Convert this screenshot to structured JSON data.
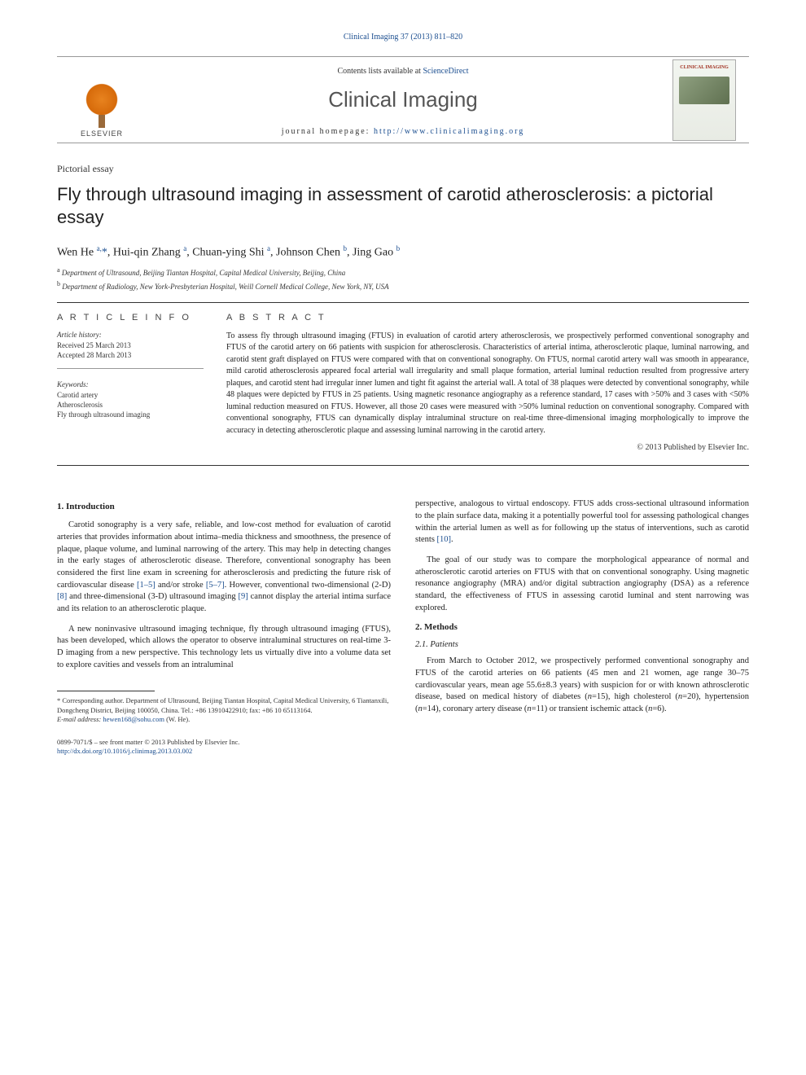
{
  "header": {
    "citation_link": "Clinical Imaging 37 (2013) 811–820",
    "contents_prefix": "Contents lists available at ",
    "contents_link": "ScienceDirect",
    "journal_title": "Clinical Imaging",
    "homepage_prefix": "journal homepage: ",
    "homepage_link": "http://www.clinicalimaging.org",
    "elsevier_label": "ELSEVIER",
    "cover_title": "CLINICAL IMAGING"
  },
  "article": {
    "type": "Pictorial essay",
    "title": "Fly through ultrasound imaging in assessment of carotid atherosclerosis: a pictorial essay",
    "authors_html": "Wen He <sup>a,</sup><span class='star'>*</span>, Hui-qin Zhang <sup>a</sup>, Chuan-ying Shi <sup>a</sup>, Johnson Chen <sup>b</sup>, Jing Gao <sup>b</sup>",
    "affiliations": [
      {
        "sup": "a",
        "text": "Department of Ultrasound, Beijing Tiantan Hospital, Capital Medical University, Beijing, China"
      },
      {
        "sup": "b",
        "text": "Department of Radiology, New York-Presbyterian Hospital, Weill Cornell Medical College, New York, NY, USA"
      }
    ]
  },
  "info": {
    "heading": "A R T I C L E   I N F O",
    "history_head": "Article history:",
    "received": "Received 25 March 2013",
    "accepted": "Accepted 28 March 2013",
    "keywords_head": "Keywords:",
    "keywords": [
      "Carotid artery",
      "Atherosclerosis",
      "Fly through ultrasound imaging"
    ]
  },
  "abstract": {
    "heading": "A B S T R A C T",
    "text": "To assess fly through ultrasound imaging (FTUS) in evaluation of carotid artery atherosclerosis, we prospectively performed conventional sonography and FTUS of the carotid artery on 66 patients with suspicion for atherosclerosis. Characteristics of arterial intima, atherosclerotic plaque, luminal narrowing, and carotid stent graft displayed on FTUS were compared with that on conventional sonography. On FTUS, normal carotid artery wall was smooth in appearance, mild carotid atherosclerosis appeared focal arterial wall irregularity and small plaque formation, arterial luminal reduction resulted from progressive artery plaques, and carotid stent had irregular inner lumen and tight fit against the arterial wall. A total of 38 plaques were detected by conventional sonography, while 48 plaques were depicted by FTUS in 25 patients. Using magnetic resonance angiography as a reference standard, 17 cases with >50% and 3 cases with <50% luminal reduction measured on FTUS. However, all those 20 cases were measured with >50% luminal reduction on conventional sonography. Compared with conventional sonography, FTUS can dynamically display intraluminal structure on real-time three-dimensional imaging morphologically to improve the accuracy in detecting atherosclerotic plaque and assessing luminal narrowing in the carotid artery.",
    "copyright": "© 2013 Published by Elsevier Inc."
  },
  "body": {
    "left": {
      "h1": "1. Introduction",
      "p1": "Carotid sonography is a very safe, reliable, and low-cost method for evaluation of carotid arteries that provides information about intima–media thickness and smoothness, the presence of plaque, plaque volume, and luminal narrowing of the artery. This may help in detecting changes in the early stages of atherosclerotic disease. Therefore, conventional sonography has been considered the first line exam in screening for atherosclerosis and predicting the future risk of cardiovascular disease [1–5] and/or stroke [5–7]. However, conventional two-dimensional (2-D) [8] and three-dimensional (3-D) ultrasound imaging [9] cannot display the arterial intima surface and its relation to an atherosclerotic plaque.",
      "p2": "A new noninvasive ultrasound imaging technique, fly through ultrasound imaging (FTUS), has been developed, which allows the operator to observe intraluminal structures on real-time 3-D imaging from a new perspective. This technology lets us virtually dive into a volume data set to explore cavities and vessels from an intraluminal"
    },
    "right": {
      "p1": "perspective, analogous to virtual endoscopy. FTUS adds cross-sectional ultrasound information to the plain surface data, making it a potentially powerful tool for assessing pathological changes within the arterial lumen as well as for following up the status of interventions, such as carotid stents [10].",
      "p2": "The goal of our study was to compare the morphological appearance of normal and atherosclerotic carotid arteries on FTUS with that on conventional sonography. Using magnetic resonance angiography (MRA) and/or digital subtraction angiography (DSA) as a reference standard, the effectiveness of FTUS in assessing carotid luminal and stent narrowing was explored.",
      "h2": "2. Methods",
      "h21": "2.1. Patients",
      "p3": "From March to October 2012, we prospectively performed conventional sonography and FTUS of the carotid arteries on 66 patients (45 men and 21 women, age range 30–75 cardiovascular years, mean age 55.6±8.3 years) with suspicion for or with known athrosclerotic disease, based on medical history of diabetes (n=15), high cholesterol (n=20), hypertension (n=14), coronary artery disease (n=11) or transient ischemic attack (n=6)."
    }
  },
  "footnote": {
    "corr": "* Corresponding author. Department of Ultrasound, Beijing Tiantan Hospital, Capital Medical University, 6 Tiantanxili, Dongcheng District, Beijing 100050, China. Tel.: +86 13910422910; fax: +86 10 65113164.",
    "email_label": "E-mail address: ",
    "email": "hewen168@sohu.com",
    "email_suffix": " (W. He)."
  },
  "footer": {
    "issn": "0899-7071/$ – see front matter © 2013 Published by Elsevier Inc.",
    "doi": "http://dx.doi.org/10.1016/j.clinimag.2013.03.002"
  },
  "colors": {
    "link": "#1a4d8f",
    "text": "#222222",
    "muted": "#555555",
    "rule": "#333333"
  }
}
